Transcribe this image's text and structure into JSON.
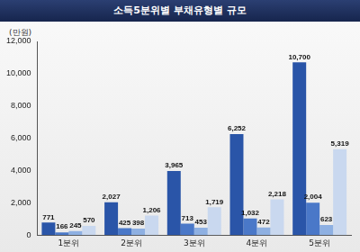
{
  "chart_data": {
    "type": "bar",
    "title": "소득5분위별 부채유형별 규모",
    "y_label": "(만원)",
    "categories": [
      "1분위",
      "2분위",
      "3분위",
      "4분위",
      "5분위"
    ],
    "series": [
      {
        "color": "#2a55a8",
        "values": [
          771,
          2027,
          3965,
          6252,
          10700
        ],
        "value_labels": [
          "771",
          "2,027",
          "3,965",
          "6,252",
          "10,700"
        ]
      },
      {
        "color": "#4a78c8",
        "values": [
          166,
          425,
          713,
          1032,
          2004
        ],
        "value_labels": [
          "166",
          "425",
          "713",
          "1,032",
          "2,004"
        ]
      },
      {
        "color": "#8eb0e2",
        "values": [
          245,
          398,
          453,
          472,
          623
        ],
        "value_labels": [
          "245",
          "398",
          "453",
          "472",
          "623"
        ]
      },
      {
        "color": "#c9d8ef",
        "values": [
          570,
          1206,
          1719,
          2218,
          5319
        ],
        "value_labels": [
          "570",
          "1,206",
          "1,719",
          "2,218",
          "5,319"
        ]
      }
    ],
    "ylim": [
      0,
      12000
    ],
    "yticks": [
      0,
      {
        "value": 2000,
        "label": "2,000"
      },
      {
        "value": 4000,
        "label": "4,000"
      },
      {
        "value": 6000,
        "label": "6,000"
      },
      {
        "value": 8000,
        "label": "8,000"
      },
      {
        "value": 10000,
        "label": "10,000"
      },
      {
        "value": 12000,
        "label": "12,000"
      }
    ],
    "grid": false,
    "data_labels": true
  }
}
